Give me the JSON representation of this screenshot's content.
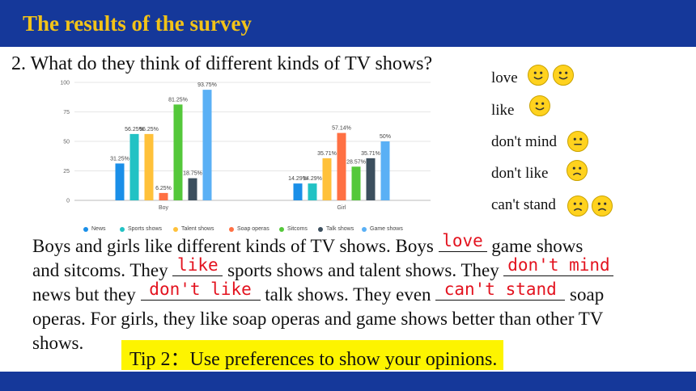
{
  "header": {
    "title": "The results of the survey"
  },
  "question": "2. What do they think of different kinds of TV shows?",
  "chart_data": {
    "type": "bar",
    "categories": [
      "Boy",
      "Girl"
    ],
    "ylim": [
      0,
      100
    ],
    "y_ticks": [
      "100",
      "75",
      "50",
      "25",
      "0"
    ],
    "grid": true,
    "legend_position": "bottom",
    "series": [
      {
        "name": "News",
        "color": "#1a8fe8",
        "values": [
          31.25,
          14.29
        ],
        "labels": [
          "31.25%",
          "14.29%"
        ]
      },
      {
        "name": "Sports shows",
        "color": "#22c2c4",
        "values": [
          56.25,
          14.29
        ],
        "labels": [
          "56.25%",
          "14.29%"
        ]
      },
      {
        "name": "Talent shows",
        "color": "#ffc13a",
        "values": [
          56.25,
          35.71
        ],
        "labels": [
          "56.25%",
          "35.71%"
        ]
      },
      {
        "name": "Soap operas",
        "color": "#ff7043",
        "values": [
          6.25,
          57.14
        ],
        "labels": [
          "6.25%",
          "57.14%"
        ]
      },
      {
        "name": "Sitcoms",
        "color": "#54c83a",
        "values": [
          81.25,
          28.57
        ],
        "labels": [
          "81.25%",
          "28.57%"
        ]
      },
      {
        "name": "Talk shows",
        "color": "#3c4f5e",
        "values": [
          18.75,
          35.71
        ],
        "labels": [
          "18.75%",
          "35.71%"
        ]
      },
      {
        "name": "Game shows",
        "color": "#5ab0f5",
        "values": [
          93.75,
          50
        ],
        "labels": [
          "93.75%",
          "50%"
        ]
      }
    ]
  },
  "key": [
    {
      "label": "love",
      "faces": [
        "smile",
        "smile"
      ]
    },
    {
      "label": "like",
      "faces": [
        "smile"
      ]
    },
    {
      "label": "don't mind",
      "faces": [
        "neutral"
      ]
    },
    {
      "label": "don't like",
      "faces": [
        "frown"
      ]
    },
    {
      "label": "can't stand",
      "faces": [
        "frown",
        "frown"
      ]
    }
  ],
  "paragraph": {
    "l1a": "Boys and girls like different kinds of TV shows. Boys",
    "a1": "love",
    "l1b": "game shows",
    "l2a": "and sitcoms. They",
    "a2": "like",
    "l2b": "sports shows and talent shows. They",
    "a3": "don't mind",
    "l3a": "news but they",
    "a4": "don't like",
    "l3b": "talk shows. They even",
    "a5": "can't stand",
    "l3c": "soap",
    "l4": "operas. For girls, they like soap operas and game shows better than other TV",
    "l5": "shows."
  },
  "tip": "Tip 2：Use preferences to show your opinions.",
  "colors": {
    "header_bg": "#15389a",
    "title": "#f2c318",
    "answer": "#e3131f",
    "tip_bg": "#fdf400"
  }
}
